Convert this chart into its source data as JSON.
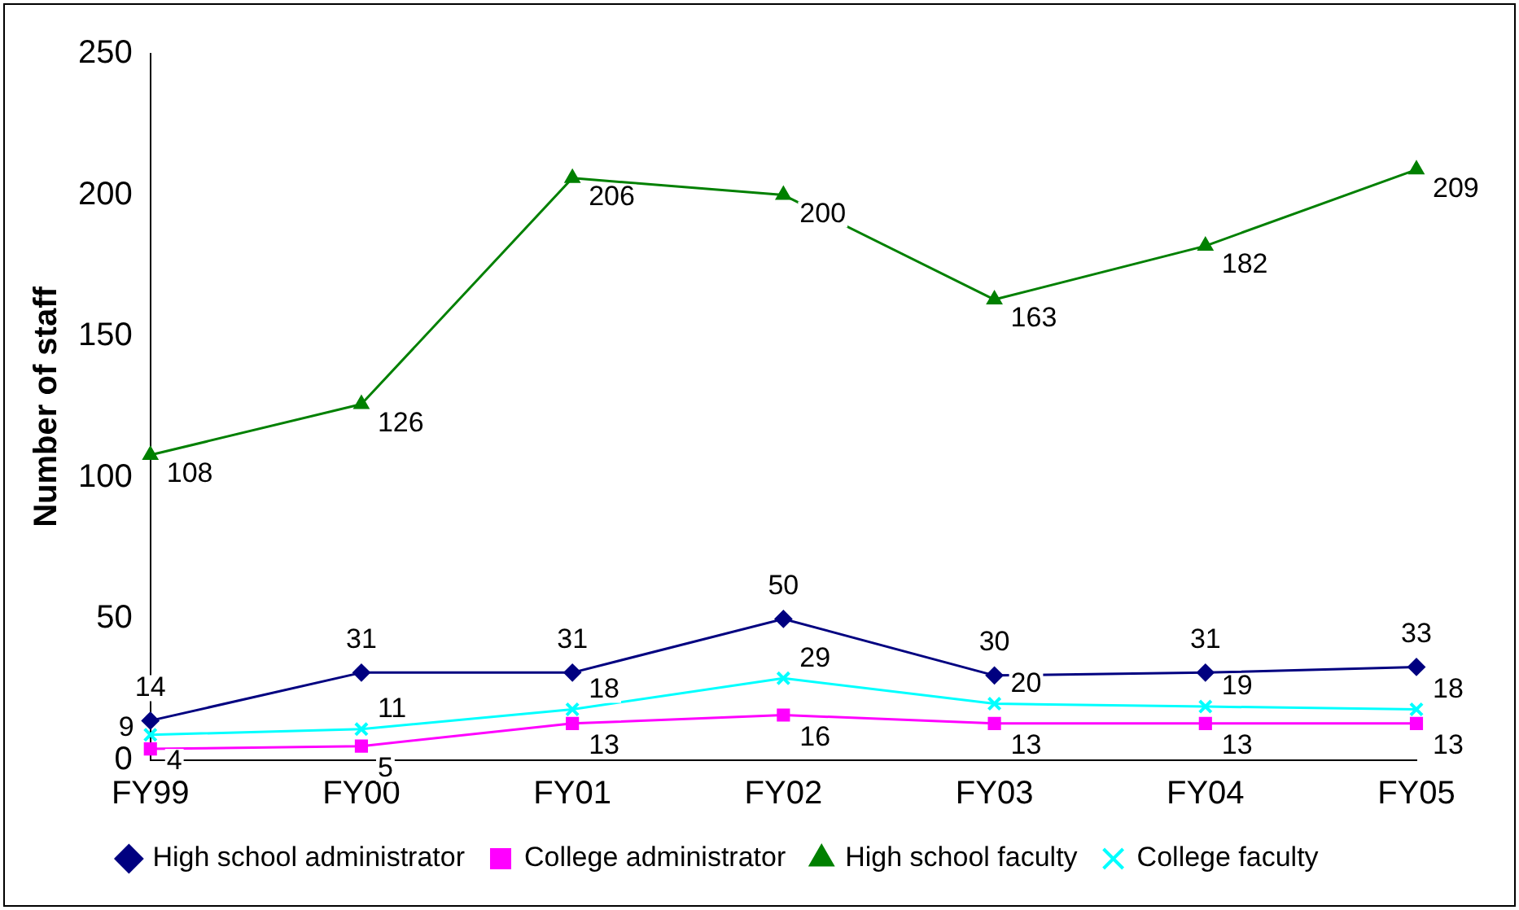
{
  "chart_data": {
    "type": "line",
    "ylabel": "Number of staff",
    "categories": [
      "FY99",
      "FY00",
      "FY01",
      "FY02",
      "FY03",
      "FY04",
      "FY05"
    ],
    "series": [
      {
        "name": "High school administrator",
        "color": "#000080",
        "marker": "diamond",
        "values": [
          14,
          31,
          31,
          50,
          30,
          31,
          33
        ]
      },
      {
        "name": "College administrator",
        "color": "#ff00ff",
        "marker": "square",
        "values": [
          4,
          5,
          13,
          16,
          13,
          13,
          13
        ]
      },
      {
        "name": "High school faculty",
        "color": "#008000",
        "marker": "triangle",
        "values": [
          108,
          126,
          206,
          200,
          163,
          182,
          209
        ]
      },
      {
        "name": "College faculty",
        "color": "#00ffff",
        "marker": "cross",
        "values": [
          9,
          11,
          18,
          29,
          20,
          19,
          18
        ]
      }
    ],
    "ylim": [
      0,
      250
    ],
    "yticks": [
      0,
      50,
      100,
      150,
      200,
      250
    ],
    "grid": false,
    "legend": "bottom",
    "data_labels": true,
    "line_style": "solid"
  }
}
